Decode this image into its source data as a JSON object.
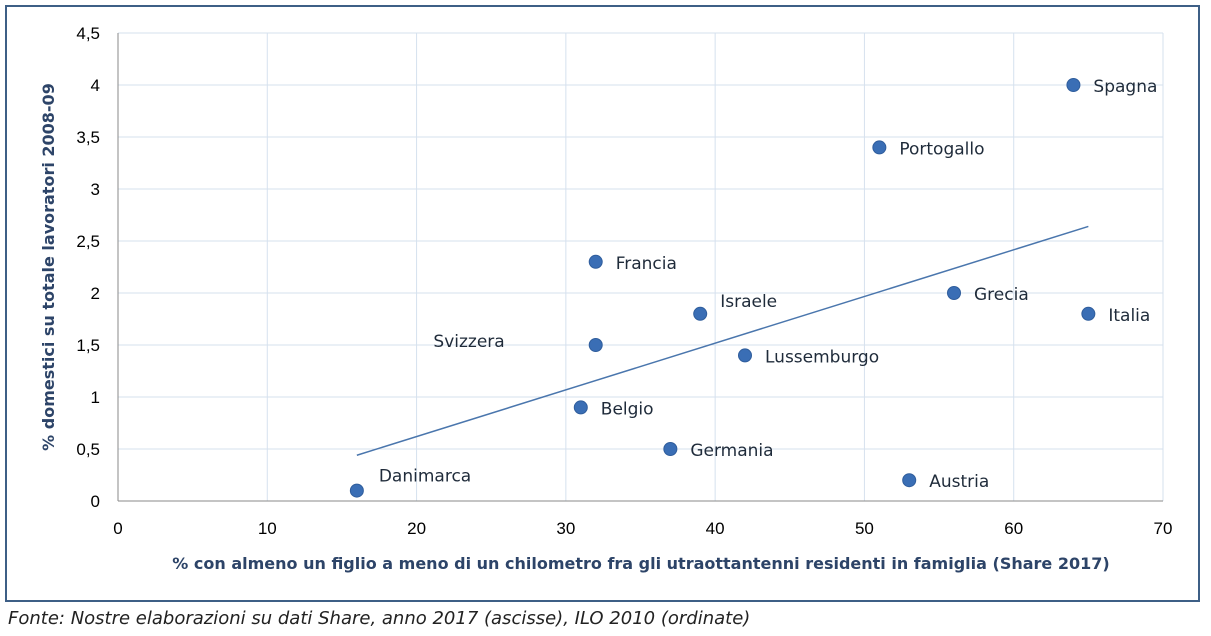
{
  "chart_data": {
    "type": "scatter",
    "xlabel": "% con almeno un figlio a meno di un chilometro fra gli utraottantenni residenti in famiglia (Share 2017)",
    "ylabel": "% domestici su totale lavoratori 2008-09",
    "xlim": [
      0,
      70
    ],
    "ylim": [
      0,
      4.5
    ],
    "x_ticks": [
      "0",
      "10",
      "20",
      "30",
      "40",
      "50",
      "60",
      "70"
    ],
    "y_ticks": [
      "0",
      "0,5",
      "1",
      "1,5",
      "2",
      "2,5",
      "3",
      "3,5",
      "4",
      "4,5"
    ],
    "grid": true,
    "points": [
      {
        "label": "Danimarca",
        "x": 16,
        "y": 0.1
      },
      {
        "label": "Belgio",
        "x": 31,
        "y": 0.9
      },
      {
        "label": "Svizzera",
        "x": 32,
        "y": 1.5
      },
      {
        "label": "Francia",
        "x": 32,
        "y": 2.3
      },
      {
        "label": "Germania",
        "x": 37,
        "y": 0.5
      },
      {
        "label": "Israele",
        "x": 39,
        "y": 1.8
      },
      {
        "label": "Lussemburgo",
        "x": 42,
        "y": 1.4
      },
      {
        "label": "Portogallo",
        "x": 51,
        "y": 3.4
      },
      {
        "label": "Austria",
        "x": 53,
        "y": 0.2
      },
      {
        "label": "Grecia",
        "x": 56,
        "y": 2.0
      },
      {
        "label": "Spagna",
        "x": 64,
        "y": 4.0
      },
      {
        "label": "Italia",
        "x": 65,
        "y": 1.8
      }
    ],
    "trendline": {
      "x": [
        16,
        65
      ],
      "y": [
        0.44,
        2.64
      ]
    },
    "colors": {
      "points": "#3a6eb5",
      "trendline": "#4a76ad",
      "grid": "#d6e1ee",
      "axis_title": "#2d4468",
      "frame": "#3e5f86"
    }
  },
  "source_note": "Fonte: Nostre elaborazioni su dati Share, anno 2017 (ascisse), ILO 2010 (ordinate)"
}
